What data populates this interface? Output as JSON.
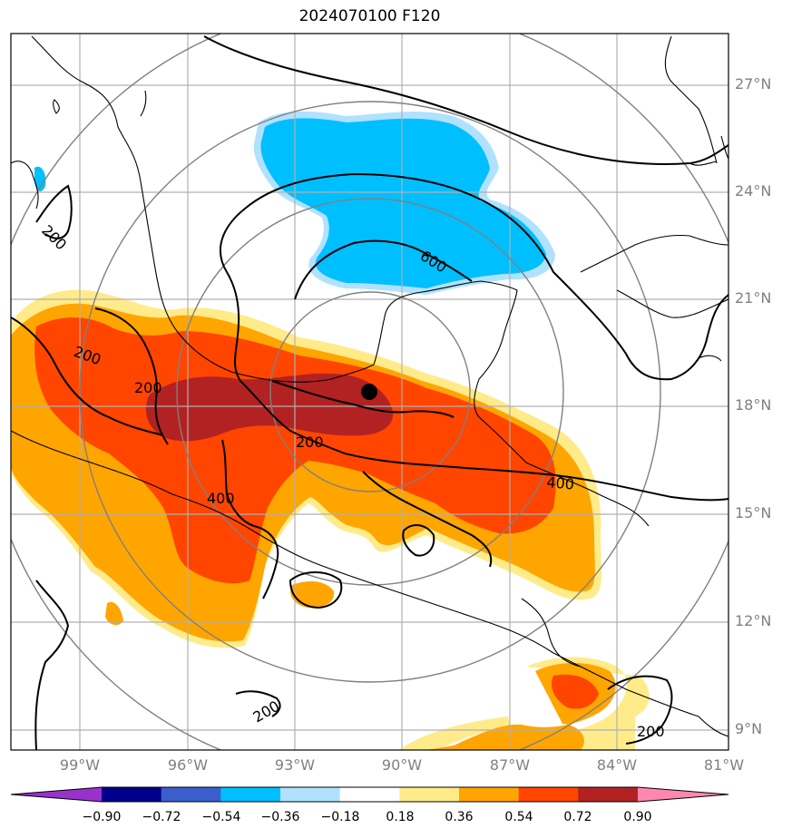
{
  "title": "2024070100 F120",
  "lat_labels": [
    "27°N",
    "24°N",
    "21°N",
    "18°N",
    "15°N",
    "12°N",
    "9°N"
  ],
  "lon_labels": [
    "99°W",
    "96°W",
    "93°W",
    "90°W",
    "87°W",
    "84°W",
    "81°W"
  ],
  "contour_labels": [
    "200",
    "200",
    "200",
    "200",
    "200",
    "200",
    "400",
    "400",
    "600"
  ],
  "colorbar": {
    "ticks": [
      "−0.90",
      "−0.72",
      "−0.54",
      "−0.36",
      "−0.18",
      "0.18",
      "0.36",
      "0.54",
      "0.72",
      "0.90"
    ],
    "colors": [
      "#9932cc",
      "#00008b",
      "#3a5fcd",
      "#00bfff",
      "#b0e2ff",
      "#ffffff",
      "#ffeb8a",
      "#ffa500",
      "#ff4500",
      "#b22222",
      "#ff88b0"
    ]
  },
  "colors": {
    "light_yellow": "#ffeb8a",
    "orange": "#ffa500",
    "red_orange": "#ff4500",
    "dark_red": "#b22222",
    "blue": "#00bfff",
    "light_blue": "#b0e2ff"
  },
  "center_marker": "storm-center-dot"
}
